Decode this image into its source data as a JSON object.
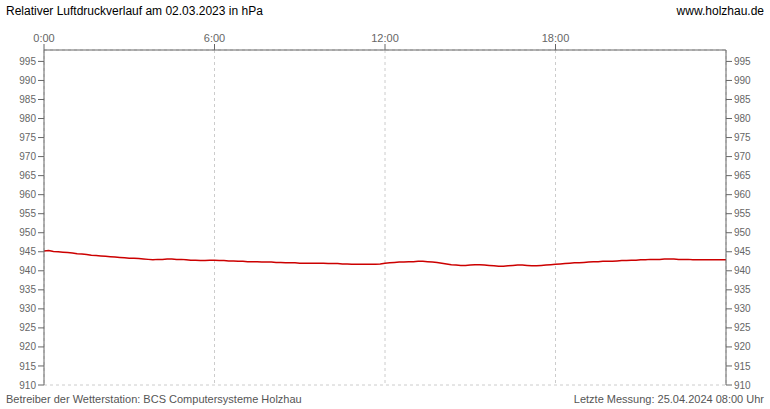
{
  "chart_data": {
    "type": "line",
    "title": "Relativer Luftdruckverlauf am 02.03.2023 in hPa",
    "annotations": [
      "www.holzhau.de",
      "Betreiber der Wetterstation: BCS Computersysteme Holzhau",
      "Letzte Messung: 25.04.2024 08:00 Uhr"
    ],
    "color": "#cc0000",
    "grid": true,
    "xlim": [
      0,
      1440
    ],
    "xticks": [
      {
        "value": 0,
        "label": "0:00"
      },
      {
        "value": 360,
        "label": "6:00"
      },
      {
        "value": 720,
        "label": "12:00"
      },
      {
        "value": 1080,
        "label": "18:00"
      }
    ],
    "ylim": [
      910,
      998
    ],
    "yticks": [
      910,
      915,
      920,
      925,
      930,
      935,
      940,
      945,
      950,
      955,
      960,
      965,
      970,
      975,
      980,
      985,
      990,
      995
    ],
    "x": [
      0,
      10,
      20,
      30,
      40,
      50,
      60,
      70,
      80,
      90,
      100,
      110,
      120,
      130,
      140,
      150,
      160,
      170,
      180,
      190,
      200,
      210,
      220,
      230,
      240,
      250,
      260,
      270,
      280,
      290,
      300,
      310,
      320,
      330,
      340,
      350,
      360,
      370,
      380,
      390,
      400,
      410,
      420,
      430,
      440,
      450,
      460,
      470,
      480,
      490,
      500,
      510,
      520,
      530,
      540,
      550,
      560,
      570,
      580,
      590,
      600,
      610,
      620,
      630,
      640,
      650,
      660,
      670,
      680,
      690,
      700,
      710,
      720,
      730,
      740,
      750,
      760,
      770,
      780,
      790,
      800,
      810,
      820,
      830,
      840,
      850,
      860,
      870,
      880,
      890,
      900,
      910,
      920,
      930,
      940,
      950,
      960,
      970,
      980,
      990,
      1000,
      1010,
      1020,
      1030,
      1040,
      1050,
      1060,
      1070,
      1080,
      1090,
      1100,
      1110,
      1120,
      1130,
      1140,
      1150,
      1160,
      1170,
      1180,
      1190,
      1200,
      1210,
      1220,
      1230,
      1240,
      1250,
      1260,
      1270,
      1280,
      1290,
      1300,
      1310,
      1320,
      1330,
      1340,
      1350,
      1360,
      1370,
      1380,
      1390,
      1400,
      1410,
      1420,
      1430,
      1440
    ],
    "values": [
      945.2,
      945.3,
      945.1,
      945.0,
      944.9,
      944.8,
      944.7,
      944.5,
      944.4,
      944.3,
      944.1,
      944.0,
      943.9,
      943.8,
      943.7,
      943.6,
      943.5,
      943.4,
      943.3,
      943.3,
      943.2,
      943.1,
      943.0,
      942.9,
      943.0,
      943.0,
      943.1,
      943.1,
      943.0,
      943.0,
      942.9,
      942.8,
      942.8,
      942.7,
      942.7,
      942.8,
      942.8,
      942.7,
      942.7,
      942.6,
      942.6,
      942.5,
      942.5,
      942.4,
      942.4,
      942.4,
      942.3,
      942.3,
      942.3,
      942.2,
      942.2,
      942.1,
      942.1,
      942.1,
      942.0,
      942.0,
      942.0,
      942.0,
      942.0,
      942.0,
      941.9,
      941.9,
      941.9,
      941.8,
      941.8,
      941.7,
      941.7,
      941.7,
      941.7,
      941.7,
      941.7,
      941.8,
      942.0,
      942.1,
      942.2,
      942.3,
      942.3,
      942.4,
      942.4,
      942.5,
      942.5,
      942.4,
      942.3,
      942.2,
      942.0,
      941.8,
      941.6,
      941.5,
      941.4,
      941.4,
      941.5,
      941.6,
      941.6,
      941.5,
      941.4,
      941.3,
      941.2,
      941.2,
      941.3,
      941.4,
      941.5,
      941.5,
      941.4,
      941.3,
      941.3,
      941.4,
      941.5,
      941.6,
      941.7,
      941.8,
      941.9,
      942.0,
      942.1,
      942.1,
      942.2,
      942.3,
      942.4,
      942.4,
      942.5,
      942.5,
      942.5,
      942.6,
      942.7,
      942.7,
      942.8,
      942.8,
      942.9,
      942.9,
      943.0,
      943.0,
      943.0,
      943.1,
      943.1,
      943.1,
      943.0,
      943.0,
      943.0,
      942.9,
      942.9,
      942.9,
      942.9,
      942.9,
      942.9,
      942.9,
      942.9
    ]
  }
}
